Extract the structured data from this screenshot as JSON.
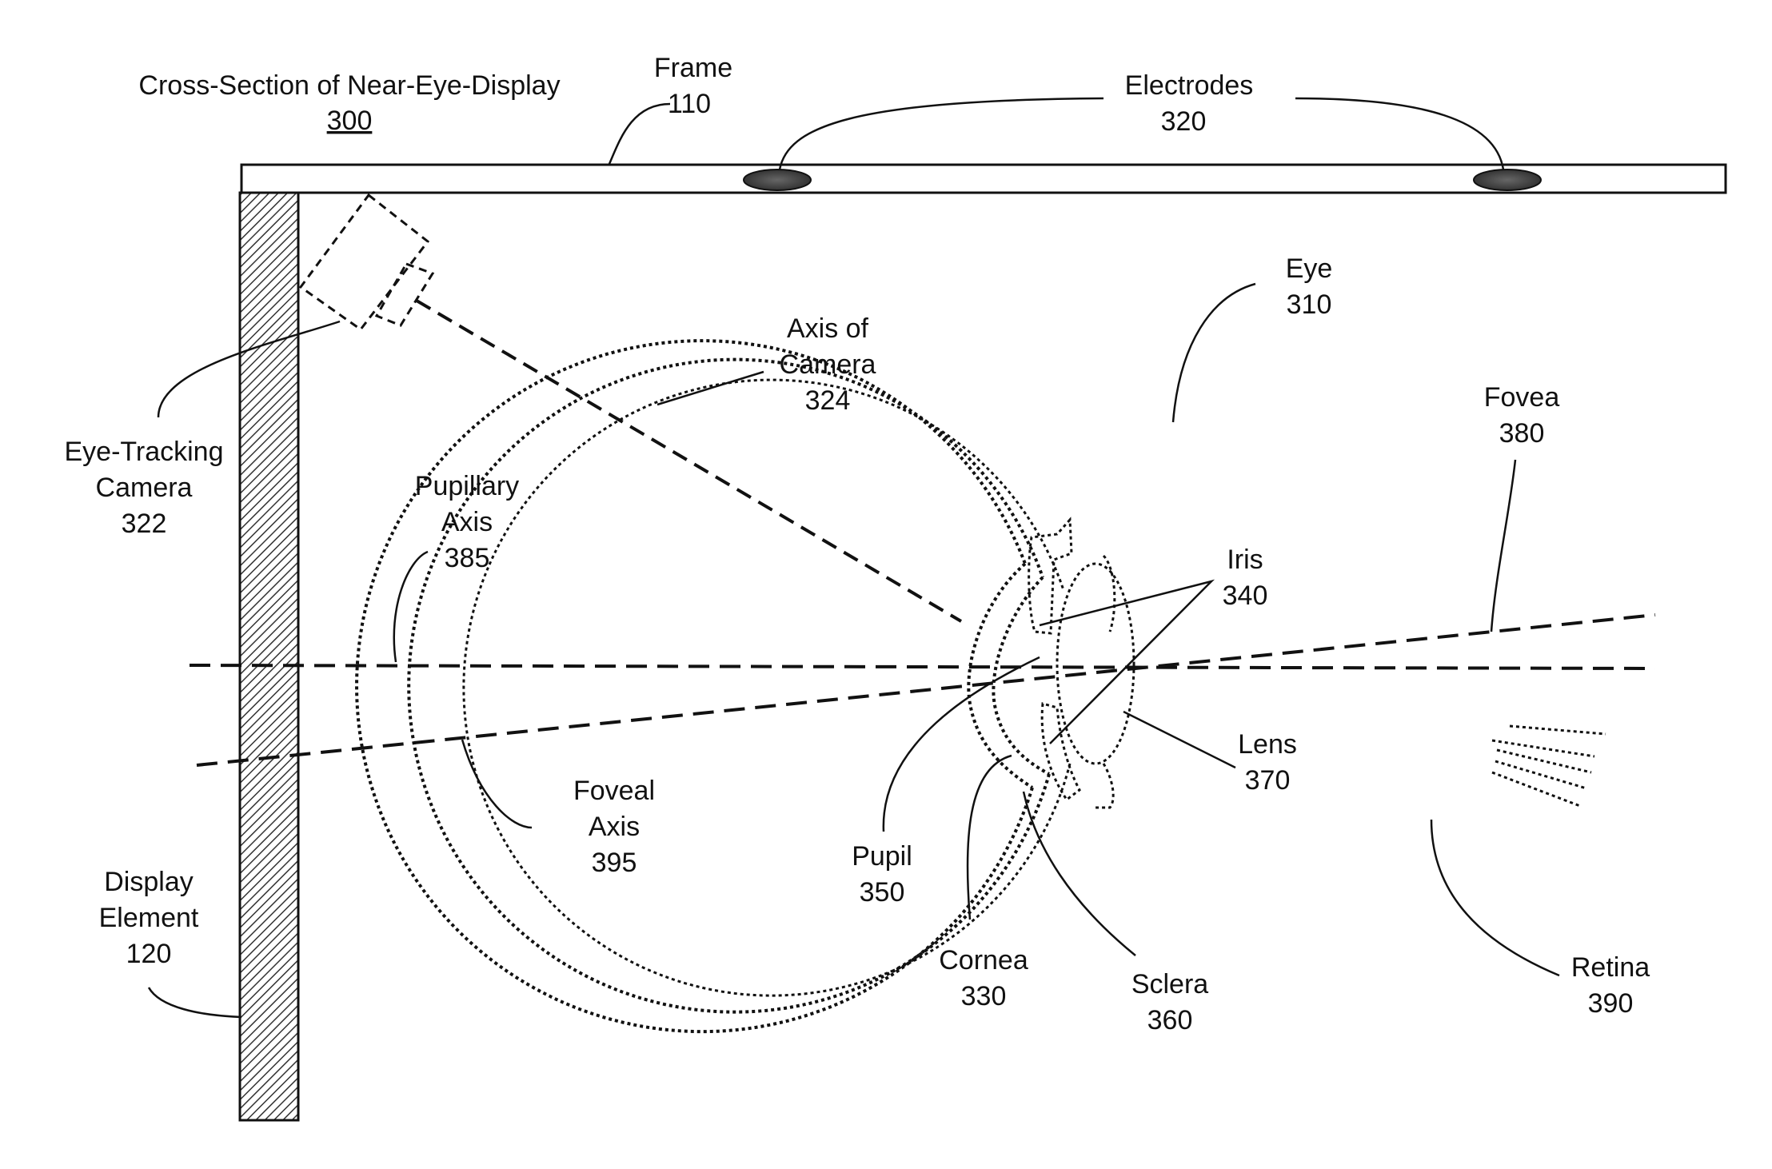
{
  "title": {
    "text": "Cross-Section of Near-Eye-Display",
    "number": "300"
  },
  "labels": {
    "frame": {
      "name": "Frame",
      "number": "110"
    },
    "electrodes": {
      "name": "Electrodes",
      "number": "320"
    },
    "eye": {
      "name": "Eye",
      "number": "310"
    },
    "axis_of_camera": {
      "line1": "Axis of",
      "line2": "Camera",
      "number": "324"
    },
    "eye_tracking_camera": {
      "line1": "Eye-Tracking",
      "line2": "Camera",
      "number": "322"
    },
    "pupillary_axis": {
      "line1": "Pupillary",
      "line2": "Axis",
      "number": "385"
    },
    "fovea": {
      "name": "Fovea",
      "number": "380"
    },
    "iris": {
      "name": "Iris",
      "number": "340"
    },
    "lens": {
      "name": "Lens",
      "number": "370"
    },
    "foveal_axis": {
      "line1": "Foveal",
      "line2": "Axis",
      "number": "395"
    },
    "display_element": {
      "line1": "Display",
      "line2": "Element",
      "number": "120"
    },
    "pupil": {
      "name": "Pupil",
      "number": "350"
    },
    "cornea": {
      "name": "Cornea",
      "number": "330"
    },
    "sclera": {
      "name": "Sclera",
      "number": "360"
    },
    "retina": {
      "name": "Retina",
      "number": "390"
    }
  }
}
